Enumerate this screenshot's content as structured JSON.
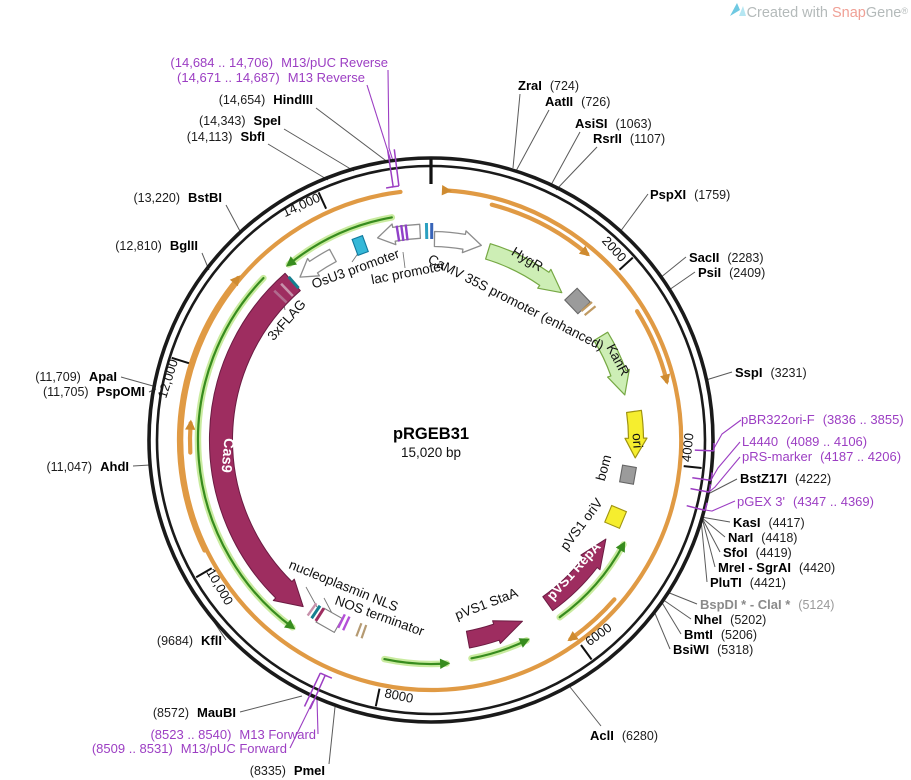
{
  "watermark": {
    "prefix": "Created with ",
    "brand_1": "Snap",
    "brand_2": "Gene",
    "reg": "®"
  },
  "plasmid": {
    "name": "pRGEB31",
    "size": "15,020 bp"
  },
  "ticks": [
    "14,000",
    "2000",
    "4000",
    "6000",
    "8000",
    "10,000",
    "12,000"
  ],
  "sites_left": [
    {
      "pos": "(14,654)",
      "name": "HindIII"
    },
    {
      "pos": "(14,343)",
      "name": "SpeI"
    },
    {
      "pos": "(14,113)",
      "name": "SbfI"
    },
    {
      "pos": "(13,220)",
      "name": "BstBI"
    },
    {
      "pos": "(12,810)",
      "name": "BglII"
    },
    {
      "pos": "(11,709)",
      "name": "ApaI"
    },
    {
      "pos": "(11,705)",
      "name": "PspOMI"
    },
    {
      "pos": "(11,047)",
      "name": "AhdI"
    },
    {
      "pos": "(9684)",
      "name": "KflI"
    },
    {
      "pos": "(8572)",
      "name": "MauBI"
    },
    {
      "pos": "(8335)",
      "name": "PmeI"
    }
  ],
  "sites_right": [
    {
      "name": "ZraI",
      "pos": "(724)"
    },
    {
      "name": "AatII",
      "pos": "(726)"
    },
    {
      "name": "AsiSI",
      "pos": "(1063)"
    },
    {
      "name": "RsrII",
      "pos": "(1107)"
    },
    {
      "name": "PspXI",
      "pos": "(1759)"
    },
    {
      "name": "SacII",
      "pos": "(2283)"
    },
    {
      "name": "PsiI",
      "pos": "(2409)"
    },
    {
      "name": "SspI",
      "pos": "(3231)"
    },
    {
      "name": "BstZ17I",
      "pos": "(4222)"
    },
    {
      "name": "KasI",
      "pos": "(4417)"
    },
    {
      "name": "NarI",
      "pos": "(4418)"
    },
    {
      "name": "SfoI",
      "pos": "(4419)"
    },
    {
      "name": "MreI - SgrAI",
      "pos": "(4420)"
    },
    {
      "name": "PluTI",
      "pos": "(4421)"
    },
    {
      "name": "BspDI * - ClaI *",
      "pos": "(5124)"
    },
    {
      "name": "NheI",
      "pos": "(5202)"
    },
    {
      "name": "BmtI",
      "pos": "(5206)"
    },
    {
      "name": "BsiWI",
      "pos": "(5318)"
    },
    {
      "name": "AclI",
      "pos": "(6280)"
    }
  ],
  "primers_left": [
    {
      "pos": "(14,684 .. 14,706)",
      "name": "M13/pUC Reverse"
    },
    {
      "pos": "(14,671 .. 14,687)",
      "name": "M13 Reverse"
    },
    {
      "pos": "(8523 .. 8540)",
      "name": "M13 Forward"
    },
    {
      "pos": "(8509 .. 8531)",
      "name": "M13/pUC Forward"
    }
  ],
  "primers_right": [
    {
      "name": "pBR322ori-F",
      "pos": "(3836 .. 3855)"
    },
    {
      "name": "L4440",
      "pos": "(4089 .. 4106)"
    },
    {
      "name": "pRS-marker",
      "pos": "(4187 .. 4206)"
    },
    {
      "name": "pGEX 3'",
      "pos": "(4347 .. 4369)"
    }
  ],
  "features": {
    "osu3": "OsU3 promoter",
    "lac": "lac promoter",
    "camv": "CaMV 35S promoter (enhanced)",
    "hygr": "HygR",
    "kanr": "KanR",
    "ori": "ori",
    "bom": "bom",
    "pvs1_oriv": "pVS1 oriV",
    "pvs1_repa": "pVS1 RepA",
    "pvs1_staa": "pVS1 StaA",
    "nos": "NOS terminator",
    "nls": "nucleoplasmin NLS",
    "cas9": "Cas9",
    "flag": "3xFLAG"
  },
  "colors": {
    "backbone": "#1a1a1a",
    "cds_maroon": "#9e2d60",
    "cds_maroon_stroke": "#6b1b42",
    "selection_green_fill": "#cdeeb5",
    "selection_green_stroke": "#76a844",
    "ori_yellow": "#f6ee2e",
    "ori_yellow_stroke": "#a09410",
    "misc_gray": "#9b9b9b",
    "orf_orange": "#e09a44",
    "orf_orange_head": "#cf8b30",
    "orf_green": "#378c1e",
    "orf_green_glow": "#bfe88e",
    "primer_purple": "#9c3ec3",
    "leader_gray": "#5a5a5a"
  }
}
